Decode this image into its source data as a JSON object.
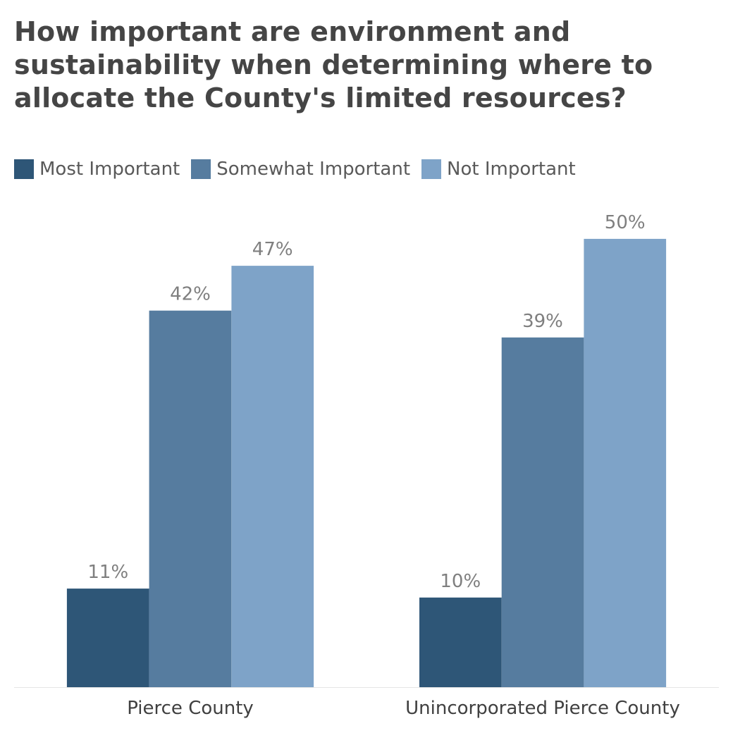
{
  "chart_data": {
    "type": "bar",
    "title": "How important are environment and sustainability when determining where to allocate the County's limited resources?",
    "categories": [
      "Pierce County",
      "Unincorporated Pierce County"
    ],
    "series": [
      {
        "name": "Most Important",
        "values": [
          11,
          10
        ],
        "color": "#2e5677"
      },
      {
        "name": "Somewhat Important",
        "values": [
          42,
          39
        ],
        "color": "#567c9f"
      },
      {
        "name": "Not Important",
        "values": [
          47,
          50
        ],
        "color": "#7ea3c8"
      }
    ],
    "value_suffix": "%",
    "ylim": [
      0,
      54
    ],
    "grid": false,
    "legend": "top-left",
    "baseline_color": "#e6e6e6"
  }
}
